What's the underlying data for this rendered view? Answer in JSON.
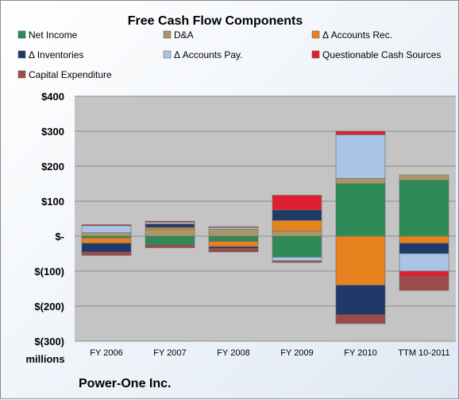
{
  "chart_data": {
    "type": "bar",
    "stacked": true,
    "title": "Free Cash Flow Components",
    "categories": [
      "FY 2006",
      "FY 2007",
      "FY 2008",
      "FY 2009",
      "FY 2010",
      "TTM 10-2011"
    ],
    "yticks": [
      "$400",
      "$300",
      "$200",
      "$100",
      "$-",
      "$(100)",
      "$(200)",
      "$(300)"
    ],
    "ylim": [
      -300,
      400
    ],
    "ylabel_unit": "millions",
    "grid": true,
    "legend_position": "top",
    "series": [
      {
        "name": "Net Income",
        "color": "#2e8b57",
        "values": [
          -5,
          -25,
          -15,
          -60,
          150,
          160
        ]
      },
      {
        "name": "D&A",
        "color": "#a89868",
        "values": [
          10,
          20,
          20,
          15,
          15,
          15
        ]
      },
      {
        "name": "Δ Accounts Rec.",
        "color": "#e8821e",
        "values": [
          -15,
          5,
          -15,
          30,
          -140,
          -20
        ]
      },
      {
        "name": "Δ Inventories",
        "color": "#1f3a68",
        "values": [
          -25,
          10,
          -5,
          30,
          -85,
          -30
        ]
      },
      {
        "name": "Δ Accounts Pay.",
        "color": "#a9c4e4",
        "values": [
          20,
          5,
          5,
          -10,
          125,
          -50
        ]
      },
      {
        "name": "Questionable Cash Sources",
        "color": "#e02030",
        "values": [
          3,
          3,
          2,
          42,
          10,
          -15
        ]
      },
      {
        "name": "Capital Expenditure",
        "color": "#9e4a4a",
        "values": [
          -10,
          -8,
          -10,
          -5,
          -25,
          -40
        ]
      }
    ],
    "footer": "Power-One Inc."
  }
}
